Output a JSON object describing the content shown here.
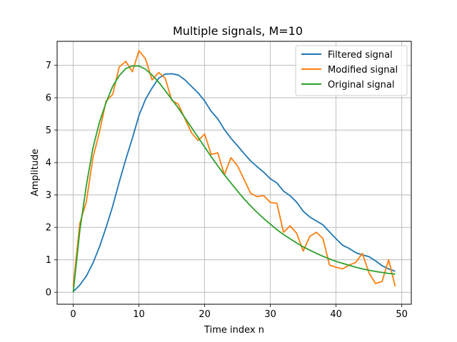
{
  "chart_data": {
    "type": "line",
    "title": "Multiple signals, M=10",
    "xlabel": "Time index n",
    "ylabel": "Amplitude",
    "xlim": [
      -2.45,
      51.45
    ],
    "ylim": [
      -0.37,
      7.74
    ],
    "xticks": [
      0,
      10,
      20,
      30,
      40,
      50
    ],
    "yticks": [
      0,
      1,
      2,
      3,
      4,
      5,
      6,
      7
    ],
    "grid": true,
    "legend": "top-right",
    "x": [
      0,
      1,
      2,
      3,
      4,
      5,
      6,
      7,
      8,
      9,
      10,
      11,
      12,
      13,
      14,
      15,
      16,
      17,
      18,
      19,
      20,
      21,
      22,
      23,
      24,
      25,
      26,
      27,
      28,
      29,
      30,
      31,
      32,
      33,
      34,
      35,
      36,
      37,
      38,
      39,
      40,
      41,
      42,
      43,
      44,
      45,
      46,
      47,
      48,
      49
    ],
    "series": [
      {
        "name": "Filtered signal",
        "color": "#1f77b4",
        "values": [
          0.02,
          0.22,
          0.5,
          0.9,
          1.4,
          2.0,
          2.65,
          3.4,
          4.1,
          4.75,
          5.45,
          5.95,
          6.3,
          6.6,
          6.73,
          6.74,
          6.7,
          6.55,
          6.35,
          6.15,
          5.9,
          5.58,
          5.35,
          5.02,
          4.75,
          4.52,
          4.28,
          4.05,
          3.87,
          3.7,
          3.5,
          3.37,
          3.12,
          2.98,
          2.78,
          2.5,
          2.32,
          2.2,
          2.08,
          1.86,
          1.65,
          1.45,
          1.35,
          1.22,
          1.15,
          1.1,
          0.97,
          0.82,
          0.72,
          0.65
        ]
      },
      {
        "name": "Modified signal",
        "color": "#ff7f0e",
        "values": [
          0.18,
          2.12,
          2.8,
          4.15,
          4.95,
          5.9,
          6.1,
          6.95,
          7.12,
          6.8,
          7.45,
          7.2,
          6.55,
          6.78,
          6.6,
          5.92,
          5.8,
          5.35,
          4.92,
          4.68,
          4.88,
          4.25,
          4.3,
          3.62,
          4.15,
          3.9,
          3.48,
          3.05,
          2.95,
          2.98,
          2.77,
          2.74,
          1.85,
          2.05,
          1.82,
          1.27,
          1.72,
          1.85,
          1.66,
          0.84,
          0.77,
          0.72,
          0.84,
          0.92,
          1.2,
          0.6,
          0.27,
          0.33,
          1.0,
          0.18
        ]
      },
      {
        "name": "Original signal",
        "color": "#2ca02c",
        "values": [
          0.0,
          1.9,
          3.3,
          4.45,
          5.25,
          5.85,
          6.35,
          6.68,
          6.9,
          6.98,
          6.98,
          6.88,
          6.7,
          6.48,
          6.22,
          5.95,
          5.68,
          5.38,
          5.08,
          4.78,
          4.48,
          4.18,
          3.9,
          3.62,
          3.37,
          3.12,
          2.88,
          2.66,
          2.46,
          2.27,
          2.1,
          1.93,
          1.78,
          1.65,
          1.52,
          1.4,
          1.3,
          1.2,
          1.11,
          1.03,
          0.95,
          0.89,
          0.83,
          0.77,
          0.72,
          0.68,
          0.64,
          0.61,
          0.58,
          0.56
        ]
      }
    ]
  }
}
